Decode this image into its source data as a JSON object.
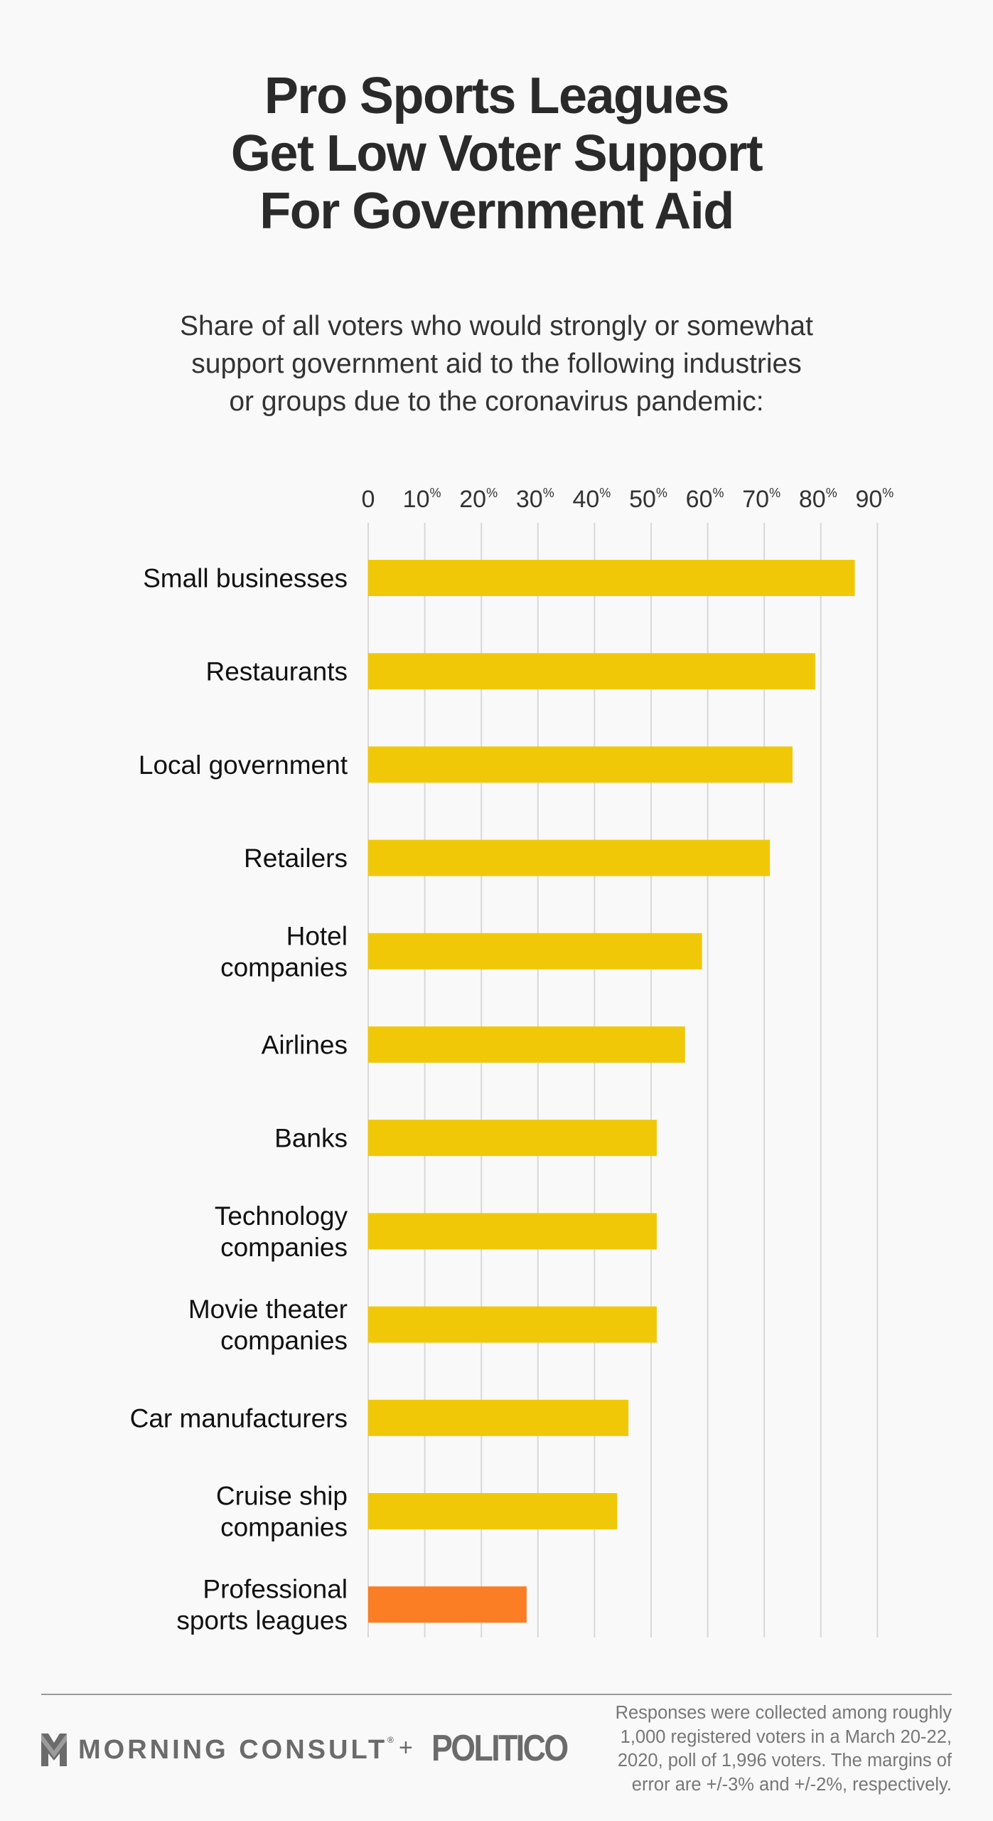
{
  "header": {
    "title_lines": [
      "Pro Sports Leagues",
      "Get Low Voter Support",
      "For Government Aid"
    ],
    "subtitle_lines": [
      "Share of all voters who would strongly or somewhat",
      "support government aid to the following industries",
      "or groups due to the coronavirus pandemic:"
    ]
  },
  "chart_data": {
    "type": "bar",
    "orientation": "horizontal",
    "title": "Pro Sports Leagues Get Low Voter Support For Government Aid",
    "subtitle": "Share of all voters who would strongly or somewhat support government aid to the following industries or groups due to the coronavirus pandemic:",
    "xlabel": "",
    "ylabel": "",
    "xlim": [
      0,
      90
    ],
    "grid": true,
    "x_ticks": [
      0,
      10,
      20,
      30,
      40,
      50,
      60,
      70,
      80,
      90
    ],
    "x_tick_labels": [
      {
        "num": "0",
        "sup": ""
      },
      {
        "num": "10",
        "sup": "%"
      },
      {
        "num": "20",
        "sup": "%"
      },
      {
        "num": "30",
        "sup": "%"
      },
      {
        "num": "40",
        "sup": "%"
      },
      {
        "num": "50",
        "sup": "%"
      },
      {
        "num": "60",
        "sup": "%"
      },
      {
        "num": "70",
        "sup": "%"
      },
      {
        "num": "80",
        "sup": "%"
      },
      {
        "num": "90",
        "sup": "%"
      }
    ],
    "categories": [
      [
        "Small businesses"
      ],
      [
        "Restaurants"
      ],
      [
        "Local government"
      ],
      [
        "Retailers"
      ],
      [
        "Hotel",
        "companies"
      ],
      [
        "Airlines"
      ],
      [
        "Banks"
      ],
      [
        "Technology",
        "companies"
      ],
      [
        "Movie theater",
        "companies"
      ],
      [
        "Car manufacturers"
      ],
      [
        "Cruise ship",
        "companies"
      ],
      [
        "Professional",
        "sports leagues"
      ]
    ],
    "values": [
      86,
      79,
      75,
      71,
      59,
      56,
      51,
      51,
      51,
      46,
      44,
      28
    ],
    "highlight_index": 11,
    "colors": {
      "default": "#f0c808",
      "highlight": "#fb7d24",
      "grid": "#d8d8d8",
      "label": "#111111",
      "tick": "#333333"
    }
  },
  "footer": {
    "brand_morning_consult": "MORNING CONSULT",
    "registered_mark": "®",
    "plus": "+",
    "brand_politico": "POLITICO",
    "note_lines": [
      "Responses were collected among roughly",
      "1,000 registered voters in a March 20-22,",
      "2020, poll of 1,996 voters. The margins of",
      "error are +/-3% and +/-2%, respectively."
    ]
  }
}
